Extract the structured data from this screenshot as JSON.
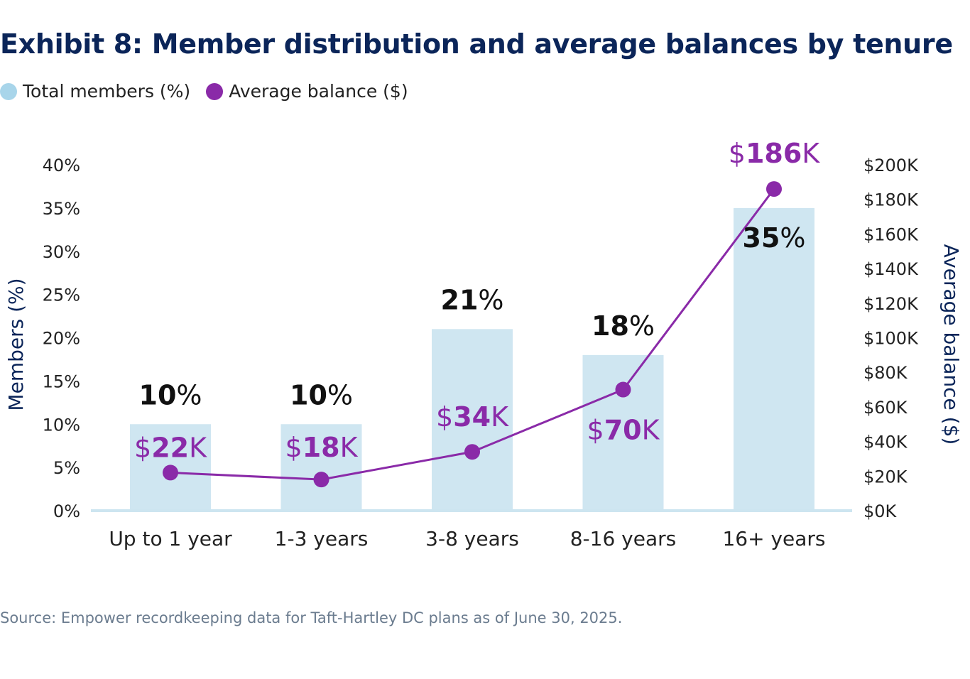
{
  "chart_data": {
    "type": "bar",
    "title": "Exhibit 8: Member distribution and average balances by tenure",
    "categories": [
      "Up to 1 year",
      "1-3 years",
      "3-8 years",
      "8-16 years",
      "16+ years"
    ],
    "series": [
      {
        "name": "Total members (%)",
        "type": "bar",
        "axis": "left",
        "values": [
          10,
          10,
          21,
          18,
          35
        ],
        "color": "#cfe6f1",
        "legend_color": "#a8d5ea"
      },
      {
        "name": "Average balance ($)",
        "type": "line",
        "axis": "right",
        "values": [
          22,
          18,
          34,
          70,
          186
        ],
        "unit": "K",
        "color": "#8a2aa8"
      }
    ],
    "ylabel": "Members (%)",
    "y2label": "Average balance ($)",
    "ylim": [
      0,
      40
    ],
    "yticks": [
      "0%",
      "5%",
      "10%",
      "15%",
      "20%",
      "25%",
      "30%",
      "35%",
      "40%"
    ],
    "y2lim": [
      0,
      200
    ],
    "y2ticks": [
      "$0K",
      "$20K",
      "$40K",
      "$60K",
      "$80K",
      "$100K",
      "$120K",
      "$140K",
      "$160K",
      "$180K",
      "$200K"
    ],
    "grid": false,
    "legend_placement": "top-left",
    "source": "Source: Empower recordkeeping data for Taft-Hartley DC plans as of June 30, 2025."
  }
}
